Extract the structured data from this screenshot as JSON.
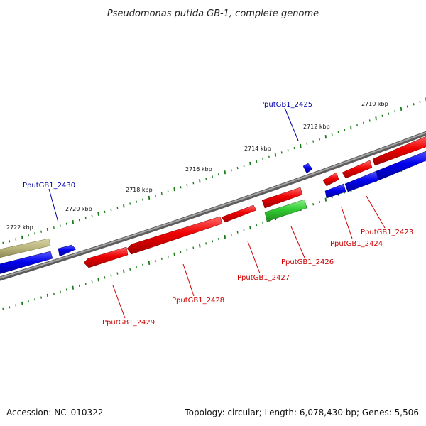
{
  "title": "Pseudomonas putida GB-1, complete genome",
  "footer": {
    "accession": "Accession: NC_010322",
    "summary": "Topology: circular; Length: 6,078,430 bp; Genes: 5,506"
  },
  "colors": {
    "backbone": "#7f7f7f",
    "tick": "#1a7a1a",
    "gene_red": "#e00000",
    "gene_blue": "#0000ee",
    "gene_green": "#33cc33",
    "gene_olive": "#b8b27a",
    "label_blue": "#0000aa",
    "label_red": "#cc0000"
  },
  "outer_scale_labels": [
    "2710 kbp",
    "2712 kbp",
    "2714 kbp",
    "2716 kbp",
    "2718 kbp",
    "2720 kbp",
    "2722 kbp"
  ],
  "gene_labels": {
    "g2425": "PputGB1_2425",
    "g2430": "PputGB1_2430",
    "g2423": "PputGB1_2423",
    "g2424": "PputGB1_2424",
    "g2426": "PputGB1_2426",
    "g2427": "PputGB1_2427",
    "g2428": "PputGB1_2428",
    "g2429": "PputGB1_2429"
  }
}
